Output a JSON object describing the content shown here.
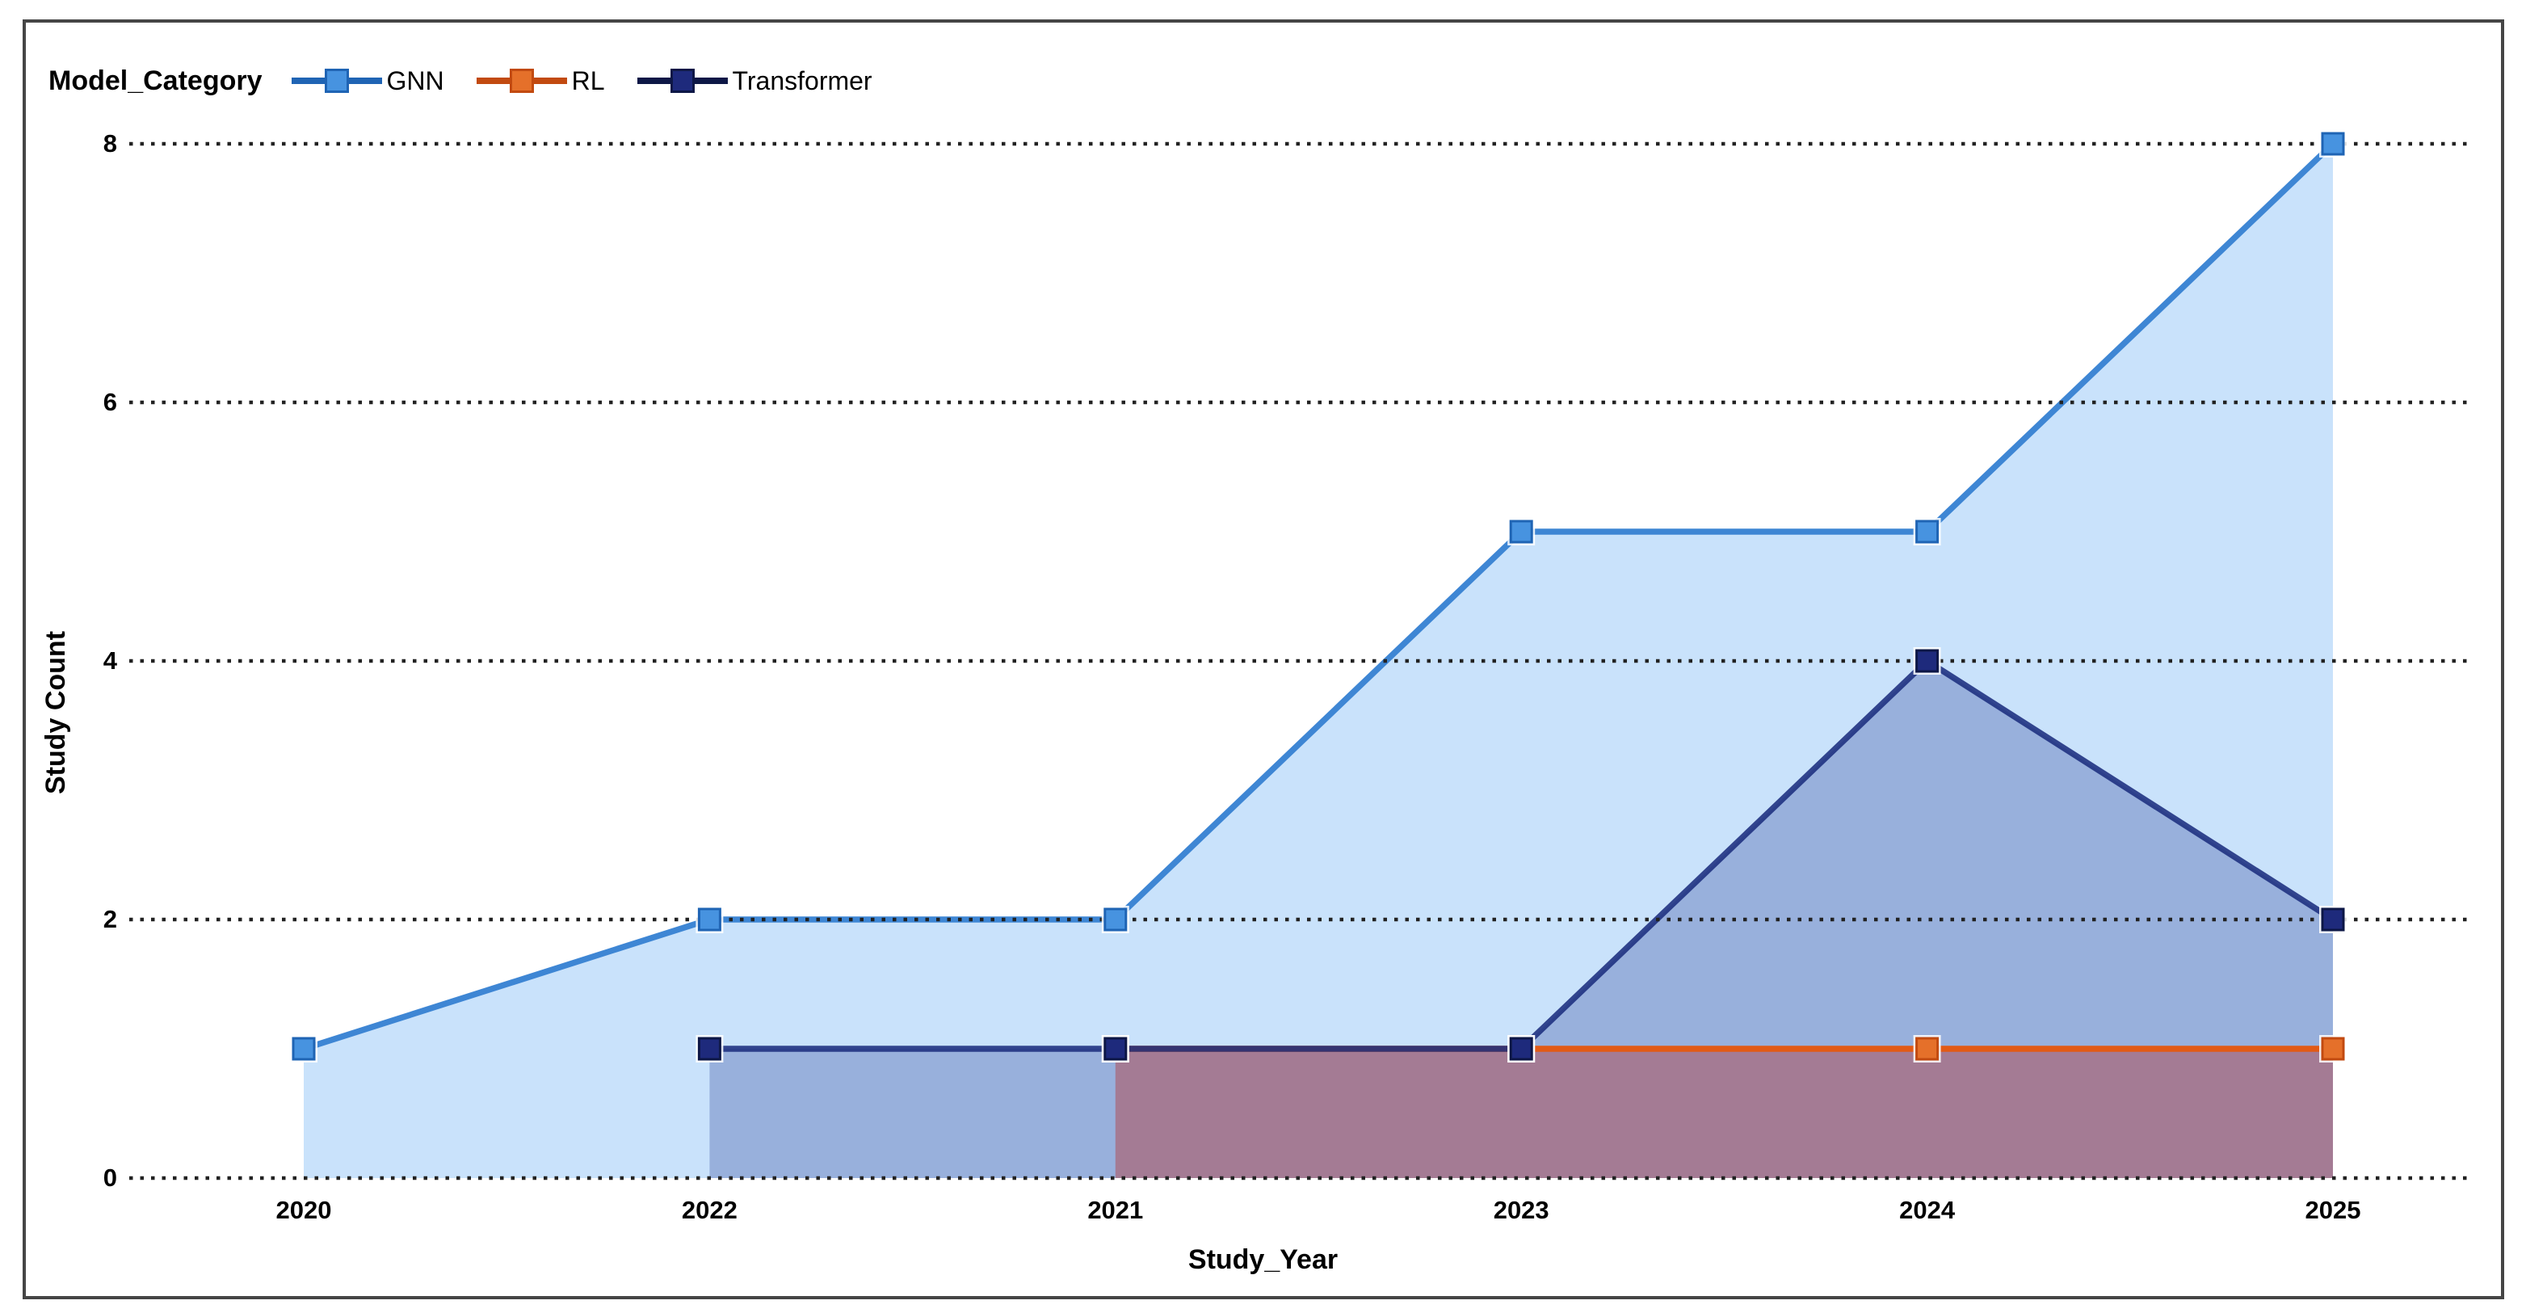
{
  "window": {
    "background_color": "#ffffff",
    "panel_border_color": "#454545"
  },
  "chart_data": {
    "type": "area",
    "legend_title": "Model_Category",
    "xlabel": "Study_Year",
    "ylabel": "Study Count",
    "categories": [
      "2020",
      "2022",
      "2021",
      "2023",
      "2024",
      "2025"
    ],
    "yticks": [
      0,
      2,
      4,
      6,
      8
    ],
    "ylim": [
      0,
      8
    ],
    "grid": "horizontal dotted lines at each y tick, drawn over the areas",
    "legend_position": "top-left",
    "series": [
      {
        "name": "GNN",
        "values": [
          1,
          2,
          2,
          5,
          5,
          8
        ],
        "line_color": "#3e86d4",
        "fill_color": "#c9e2fb",
        "fill_opacity": 1,
        "marker_color": "#4793e0",
        "marker_stroke": "#1f64b4"
      },
      {
        "name": "RL",
        "values": [
          null,
          null,
          1,
          1,
          1,
          1
        ],
        "line_color": "#e25a15",
        "fill_color": "#b43c3c",
        "fill_opacity": 0.45,
        "marker_color": "#e5702a",
        "marker_stroke": "#c24a10"
      },
      {
        "name": "Transformer",
        "values": [
          null,
          1,
          1,
          1,
          4,
          2
        ],
        "line_color": "#1b2d7e",
        "fill_color": "#3c50a0",
        "fill_opacity": 0.34,
        "marker_color": "#1e2a7c",
        "marker_stroke": "#0d1746"
      }
    ],
    "area_draw_order": [
      "GNN",
      "Transformer",
      "RL"
    ],
    "line_draw_order": [
      "GNN",
      "RL",
      "Transformer"
    ],
    "grid_color": "#222222"
  }
}
